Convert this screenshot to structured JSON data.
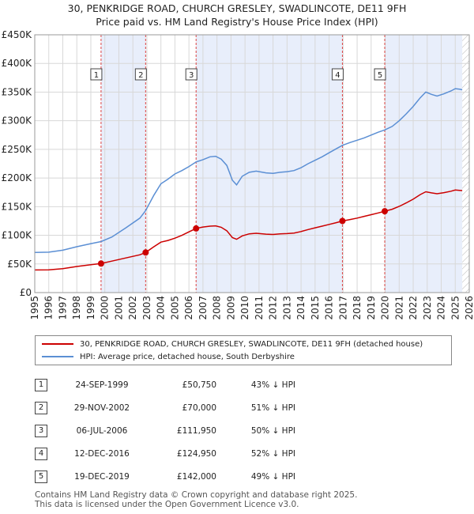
{
  "title": {
    "line1": "30, PENKRIDGE ROAD, CHURCH GRESLEY, SWADLINCOTE, DE11 9FH",
    "line2": "Price paid vs. HM Land Registry's House Price Index (HPI)"
  },
  "chart_data": {
    "type": "line",
    "xlim": [
      1995,
      2026
    ],
    "ylim": [
      0,
      450000
    ],
    "y_ticks": [
      0,
      50000,
      100000,
      150000,
      200000,
      250000,
      300000,
      350000,
      400000,
      450000
    ],
    "y_tick_labels": [
      "£0",
      "£50K",
      "£100K",
      "£150K",
      "£200K",
      "£250K",
      "£300K",
      "£350K",
      "£400K",
      "£450K"
    ],
    "x_tick_labels": [
      "1995",
      "1996",
      "1997",
      "1998",
      "1999",
      "2000",
      "2001",
      "2002",
      "2003",
      "2004",
      "2005",
      "2006",
      "2007",
      "2008",
      "2009",
      "2010",
      "2011",
      "2012",
      "2013",
      "2014",
      "2015",
      "2016",
      "2017",
      "2018",
      "2019",
      "2020",
      "2021",
      "2022",
      "2023",
      "2024",
      "2025",
      "2026"
    ],
    "shaded_ranges": [
      [
        1999.73,
        2002.91
      ],
      [
        2006.51,
        2016.95
      ],
      [
        2019.97,
        2025.5
      ]
    ],
    "hatched_from": 2025.5,
    "series": [
      {
        "name": "HPI: Average price, detached house, South Derbyshire",
        "color": "#5b8fd4",
        "points": [
          [
            1995.0,
            70000
          ],
          [
            1996.0,
            70500
          ],
          [
            1997.0,
            74000
          ],
          [
            1998.0,
            80000
          ],
          [
            1999.0,
            85500
          ],
          [
            1999.73,
            89000
          ],
          [
            2000.5,
            97000
          ],
          [
            2001.5,
            113000
          ],
          [
            2002.5,
            130000
          ],
          [
            2002.91,
            143000
          ],
          [
            2003.5,
            170000
          ],
          [
            2004.0,
            190000
          ],
          [
            2004.5,
            198000
          ],
          [
            2005.0,
            207000
          ],
          [
            2005.5,
            213000
          ],
          [
            2006.0,
            220000
          ],
          [
            2006.51,
            228000
          ],
          [
            2007.0,
            232000
          ],
          [
            2007.5,
            237000
          ],
          [
            2007.9,
            238000
          ],
          [
            2008.3,
            233000
          ],
          [
            2008.7,
            222000
          ],
          [
            2009.1,
            196000
          ],
          [
            2009.4,
            188000
          ],
          [
            2009.8,
            203000
          ],
          [
            2010.3,
            210000
          ],
          [
            2010.8,
            212000
          ],
          [
            2011.5,
            209000
          ],
          [
            2012.0,
            208000
          ],
          [
            2012.5,
            210000
          ],
          [
            2013.0,
            211000
          ],
          [
            2013.5,
            213000
          ],
          [
            2014.0,
            218000
          ],
          [
            2014.5,
            225000
          ],
          [
            2015.0,
            231000
          ],
          [
            2015.5,
            237000
          ],
          [
            2016.0,
            244000
          ],
          [
            2016.5,
            251000
          ],
          [
            2016.95,
            257000
          ],
          [
            2017.5,
            262000
          ],
          [
            2018.0,
            266000
          ],
          [
            2018.5,
            270000
          ],
          [
            2019.0,
            275000
          ],
          [
            2019.5,
            280000
          ],
          [
            2019.97,
            284000
          ],
          [
            2020.5,
            290000
          ],
          [
            2021.0,
            300000
          ],
          [
            2021.5,
            312000
          ],
          [
            2022.0,
            325000
          ],
          [
            2022.5,
            340000
          ],
          [
            2022.9,
            350000
          ],
          [
            2023.3,
            346000
          ],
          [
            2023.7,
            343000
          ],
          [
            2024.2,
            347000
          ],
          [
            2024.7,
            352000
          ],
          [
            2025.0,
            356000
          ],
          [
            2025.3,
            355000
          ],
          [
            2025.5,
            354000
          ]
        ]
      },
      {
        "name": "30, PENKRIDGE ROAD, CHURCH GRESLEY, SWADLINCOTE, DE11 9FH (detached house)",
        "color": "#cc0000",
        "points": [
          [
            1995.0,
            39500
          ],
          [
            1996.0,
            39800
          ],
          [
            1997.0,
            41700
          ],
          [
            1998.0,
            45500
          ],
          [
            1999.0,
            48700
          ],
          [
            1999.73,
            50750
          ],
          [
            2000.5,
            55000
          ],
          [
            2001.5,
            60500
          ],
          [
            2002.5,
            66000
          ],
          [
            2002.91,
            70000
          ],
          [
            2003.5,
            80000
          ],
          [
            2004.0,
            88000
          ],
          [
            2004.5,
            91000
          ],
          [
            2005.0,
            95000
          ],
          [
            2005.5,
            100000
          ],
          [
            2006.0,
            106000
          ],
          [
            2006.51,
            111950
          ],
          [
            2007.0,
            114500
          ],
          [
            2007.5,
            116000
          ],
          [
            2007.9,
            116500
          ],
          [
            2008.3,
            114000
          ],
          [
            2008.7,
            108000
          ],
          [
            2009.1,
            96000
          ],
          [
            2009.4,
            93000
          ],
          [
            2009.8,
            99000
          ],
          [
            2010.3,
            102500
          ],
          [
            2010.8,
            103500
          ],
          [
            2011.5,
            102000
          ],
          [
            2012.0,
            101500
          ],
          [
            2012.5,
            102500
          ],
          [
            2013.0,
            103000
          ],
          [
            2013.5,
            104000
          ],
          [
            2014.0,
            106500
          ],
          [
            2014.5,
            110000
          ],
          [
            2015.0,
            113000
          ],
          [
            2015.5,
            116000
          ],
          [
            2016.0,
            119000
          ],
          [
            2016.5,
            122000
          ],
          [
            2016.95,
            124950
          ],
          [
            2017.5,
            127500
          ],
          [
            2018.0,
            130000
          ],
          [
            2018.5,
            133000
          ],
          [
            2019.0,
            136000
          ],
          [
            2019.5,
            139000
          ],
          [
            2019.97,
            142000
          ],
          [
            2020.5,
            145500
          ],
          [
            2021.0,
            150500
          ],
          [
            2021.5,
            156500
          ],
          [
            2022.0,
            163000
          ],
          [
            2022.5,
            171000
          ],
          [
            2022.9,
            176000
          ],
          [
            2023.3,
            174000
          ],
          [
            2023.7,
            172500
          ],
          [
            2024.2,
            174500
          ],
          [
            2024.7,
            177000
          ],
          [
            2025.0,
            179000
          ],
          [
            2025.3,
            178500
          ],
          [
            2025.5,
            178000
          ]
        ]
      }
    ],
    "sales": [
      {
        "n": "1",
        "x": 1999.73,
        "y": 50750
      },
      {
        "n": "2",
        "x": 2002.91,
        "y": 70000
      },
      {
        "n": "3",
        "x": 2006.51,
        "y": 111950
      },
      {
        "n": "4",
        "x": 2016.95,
        "y": 124950
      },
      {
        "n": "5",
        "x": 2019.97,
        "y": 142000
      }
    ]
  },
  "legend": {
    "property_label": "30, PENKRIDGE ROAD, CHURCH GRESLEY, SWADLINCOTE, DE11 9FH (detached house)",
    "hpi_label": "HPI: Average price, detached house, South Derbyshire",
    "property_color": "#cc0000",
    "hpi_color": "#5b8fd4"
  },
  "transactions": [
    {
      "num": "1",
      "date": "24-SEP-1999",
      "price": "£50,750",
      "hpi": "43% ↓ HPI"
    },
    {
      "num": "2",
      "date": "29-NOV-2002",
      "price": "£70,000",
      "hpi": "51% ↓ HPI"
    },
    {
      "num": "3",
      "date": "06-JUL-2006",
      "price": "£111,950",
      "hpi": "50% ↓ HPI"
    },
    {
      "num": "4",
      "date": "12-DEC-2016",
      "price": "£124,950",
      "hpi": "52% ↓ HPI"
    },
    {
      "num": "5",
      "date": "19-DEC-2019",
      "price": "£142,000",
      "hpi": "49% ↓ HPI"
    }
  ],
  "footer": {
    "line1": "Contains HM Land Registry data © Crown copyright and database right 2025.",
    "line2": "This data is licensed under the Open Government Licence v3.0."
  }
}
